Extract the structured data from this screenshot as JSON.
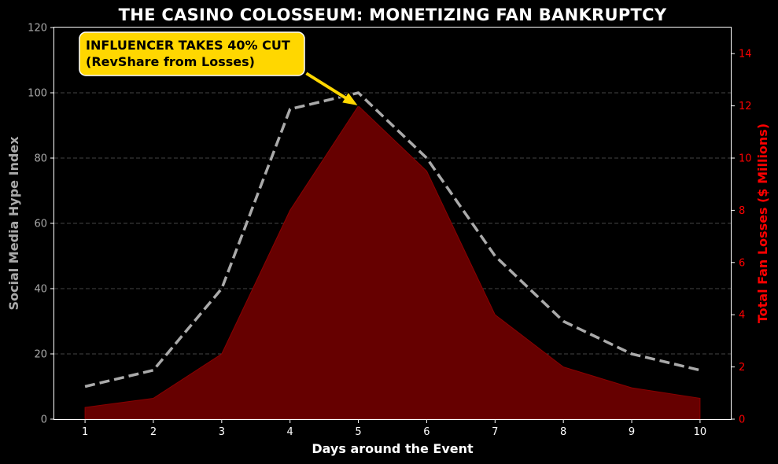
{
  "chart_data": {
    "type": "line",
    "title": "THE CASINO COLOSSEUM: MONETIZING FAN BANKRUPTCY",
    "xlabel": "Days around the Event",
    "ylabel_left": "Social Media Hype Index",
    "ylabel_right": "Total Fan Losses ($ Millions)",
    "x": [
      1,
      2,
      3,
      4,
      5,
      6,
      7,
      8,
      9,
      10
    ],
    "xlim": [
      0.55,
      10.45
    ],
    "ylim_left": [
      0,
      120
    ],
    "ylim_right": [
      0,
      15
    ],
    "yticks_left": [
      0,
      20,
      40,
      60,
      80,
      100,
      120
    ],
    "yticks_right": [
      0,
      2,
      4,
      6,
      8,
      10,
      12,
      14
    ],
    "grid": true,
    "series": [
      {
        "key": "hype",
        "axis": "left",
        "style": "dashed-line",
        "color": "#aaaaaa",
        "values": [
          10,
          15,
          40,
          95,
          100,
          80,
          50,
          30,
          20,
          15
        ]
      },
      {
        "key": "losses",
        "axis": "right",
        "style": "area",
        "color": "#660000",
        "values": [
          0.45,
          0.8,
          2.5,
          8.0,
          12.0,
          9.5,
          4.0,
          2.0,
          1.2,
          0.8
        ]
      }
    ],
    "annotation": {
      "line1": "INFLUENCER TAKES 40% CUT",
      "line2": "(RevShare from Losses)",
      "target_x": 5,
      "target_y_right": 12.0,
      "box_color": "#ffd700"
    },
    "colors": {
      "background": "#000000",
      "left_axis_text": "#aaaaaa",
      "right_axis_text": "#ff0000",
      "x_axis_text": "#ffffff",
      "grid": "#444444"
    }
  }
}
